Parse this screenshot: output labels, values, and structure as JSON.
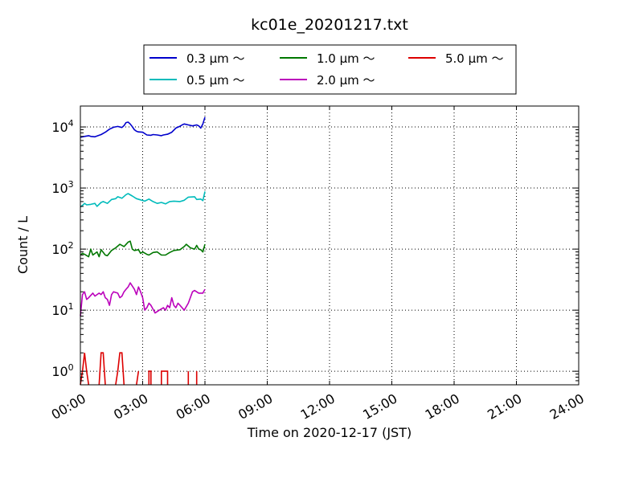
{
  "chart_data": {
    "type": "line",
    "title": "kc01e_20201217.txt",
    "xlabel": "Time on 2020-12-17 (JST)",
    "ylabel": "Count / L",
    "y_scale": "log",
    "xlim_hours": [
      0,
      24
    ],
    "ylim": [
      0.6,
      22000
    ],
    "grid": true,
    "legend_position": "top",
    "x_ticks": [
      "00:00",
      "03:00",
      "06:00",
      "09:00",
      "12:00",
      "15:00",
      "18:00",
      "21:00",
      "24:00"
    ],
    "y_ticks": [
      {
        "value": 1,
        "base": "10",
        "exp": "0"
      },
      {
        "value": 10,
        "base": "10",
        "exp": "1"
      },
      {
        "value": 100,
        "base": "10",
        "exp": "2"
      },
      {
        "value": 1000,
        "base": "10",
        "exp": "3"
      },
      {
        "value": 10000,
        "base": "10",
        "exp": "4"
      }
    ],
    "series": [
      {
        "name": "0.3 µm ～",
        "color": "#0000cc",
        "x_hours": [
          0.0,
          0.1,
          0.2,
          0.4,
          0.5,
          0.7,
          0.9,
          1.0,
          1.2,
          1.4,
          1.6,
          1.8,
          2.0,
          2.1,
          2.2,
          2.3,
          2.4,
          2.5,
          2.6,
          2.7,
          2.8,
          3.0,
          3.2,
          3.4,
          3.5,
          3.7,
          3.9,
          4.0,
          4.2,
          4.4,
          4.6,
          4.8,
          4.9,
          5.0,
          5.2,
          5.4,
          5.6,
          5.7,
          5.8,
          5.9,
          6.0
        ],
        "values": [
          6800,
          6900,
          7000,
          7200,
          7000,
          6900,
          7300,
          7500,
          8200,
          9200,
          9900,
          10200,
          9800,
          10500,
          11800,
          12000,
          11200,
          10100,
          9000,
          8500,
          8300,
          8200,
          7400,
          7300,
          7500,
          7400,
          7200,
          7400,
          7600,
          8200,
          9600,
          10300,
          10800,
          11200,
          10800,
          10400,
          10800,
          10400,
          9600,
          11200,
          14500
        ]
      },
      {
        "name": "0.5 µm ～",
        "color": "#00bbbb",
        "x_hours": [
          0.0,
          0.1,
          0.2,
          0.3,
          0.5,
          0.7,
          0.8,
          1.0,
          1.1,
          1.3,
          1.5,
          1.7,
          1.8,
          2.0,
          2.2,
          2.3,
          2.5,
          2.7,
          2.9,
          3.1,
          3.3,
          3.5,
          3.7,
          3.9,
          4.1,
          4.3,
          4.5,
          4.8,
          5.0,
          5.2,
          5.5,
          5.6,
          5.8,
          5.9,
          6.0
        ],
        "values": [
          490,
          520,
          560,
          530,
          540,
          560,
          500,
          580,
          600,
          560,
          650,
          670,
          720,
          680,
          780,
          810,
          740,
          670,
          640,
          610,
          660,
          600,
          560,
          580,
          550,
          600,
          610,
          600,
          630,
          710,
          720,
          650,
          660,
          620,
          880
        ]
      },
      {
        "name": "1.0 µm ～",
        "color": "#007700",
        "x_hours": [
          0.0,
          0.1,
          0.2,
          0.4,
          0.5,
          0.6,
          0.8,
          0.9,
          1.0,
          1.2,
          1.3,
          1.5,
          1.7,
          1.9,
          2.1,
          2.3,
          2.4,
          2.5,
          2.6,
          2.8,
          2.9,
          3.0,
          3.2,
          3.3,
          3.5,
          3.7,
          3.9,
          4.1,
          4.3,
          4.5,
          4.8,
          5.0,
          5.1,
          5.3,
          5.5,
          5.6,
          5.7,
          5.8,
          5.9,
          6.0
        ],
        "values": [
          80,
          85,
          82,
          75,
          100,
          80,
          90,
          75,
          98,
          80,
          78,
          95,
          105,
          120,
          110,
          130,
          135,
          100,
          95,
          98,
          85,
          90,
          82,
          80,
          88,
          90,
          80,
          80,
          88,
          95,
          98,
          110,
          120,
          105,
          100,
          115,
          100,
          98,
          90,
          120
        ]
      },
      {
        "name": "2.0 µm ～",
        "color": "#bb00bb",
        "x_hours": [
          0.0,
          0.1,
          0.2,
          0.3,
          0.4,
          0.6,
          0.7,
          0.9,
          1.0,
          1.1,
          1.2,
          1.3,
          1.4,
          1.5,
          1.6,
          1.8,
          1.9,
          2.0,
          2.1,
          2.2,
          2.3,
          2.4,
          2.6,
          2.7,
          2.8,
          2.9,
          3.0,
          3.1,
          3.2,
          3.3,
          3.4,
          3.6,
          3.8,
          4.0,
          4.1,
          4.2,
          4.3,
          4.4,
          4.5,
          4.6,
          4.7,
          4.8,
          5.0,
          5.2,
          5.4,
          5.5,
          5.7,
          5.9,
          6.0
        ],
        "values": [
          8,
          18,
          20,
          15,
          16,
          19,
          17,
          19,
          18,
          20,
          16,
          15,
          12,
          18,
          20,
          19,
          16,
          17,
          20,
          22,
          24,
          28,
          22,
          18,
          24,
          20,
          16,
          10,
          11,
          13,
          12,
          9,
          10,
          11,
          10,
          12,
          11,
          16,
          12,
          11,
          13,
          12,
          10,
          13,
          20,
          21,
          19,
          19,
          22
        ]
      }
    ],
    "series_5um": {
      "name": "5.0 µm ～",
      "color": "#dd0000",
      "segments": [
        {
          "x": [
            0.0,
            0.1,
            0.2,
            0.3,
            0.4
          ],
          "values": [
            0.6,
            1.0,
            2.0,
            1.0,
            0.6
          ]
        },
        {
          "x": [
            0.9,
            1.0,
            1.1,
            1.2
          ],
          "values": [
            0.6,
            2.0,
            2.0,
            0.6
          ]
        },
        {
          "x": [
            1.7,
            1.8,
            1.9,
            2.0,
            2.1
          ],
          "values": [
            0.6,
            1.0,
            2.0,
            2.0,
            0.6
          ]
        },
        {
          "x": [
            2.7,
            2.8
          ],
          "values": [
            0.6,
            1.0
          ]
        },
        {
          "x": [
            3.3,
            3.3,
            3.4,
            3.4
          ],
          "values": [
            0.6,
            1.0,
            1.0,
            0.6
          ]
        },
        {
          "x": [
            3.9,
            3.9,
            4.2,
            4.2
          ],
          "values": [
            0.6,
            1.0,
            1.0,
            0.6
          ]
        },
        {
          "x": [
            5.2,
            5.2
          ],
          "values": [
            0.6,
            1.0
          ]
        },
        {
          "x": [
            5.6,
            5.6
          ],
          "values": [
            0.6,
            1.0
          ]
        }
      ]
    }
  }
}
